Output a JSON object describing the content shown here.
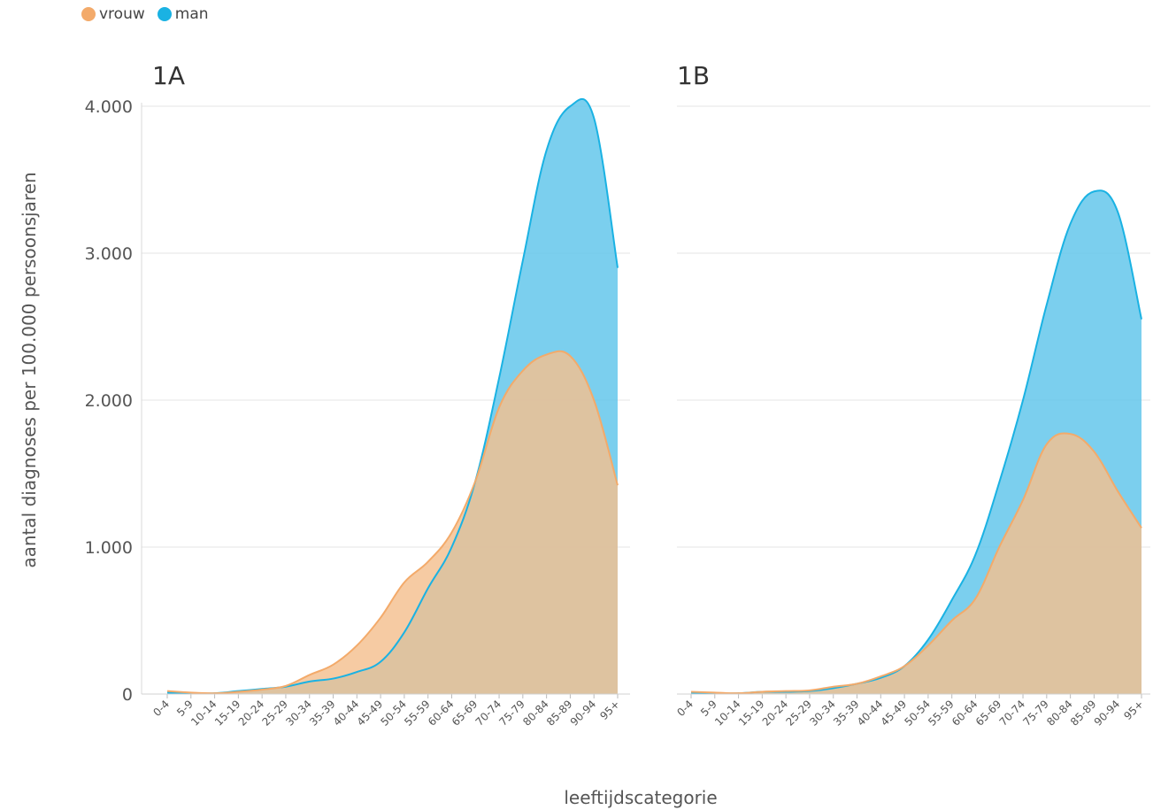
{
  "legend": [
    {
      "label": "vrouw",
      "color": "#f3aa6a"
    },
    {
      "label": "man",
      "color": "#1ab2e3"
    }
  ],
  "chart_data": {
    "type": "area",
    "xlabel": "leeftijdscategorie",
    "ylabel": "aantal diagnoses per 100.000 persoonsjaren",
    "ylim": [
      0,
      4000
    ],
    "yticks": [
      0,
      1000,
      2000,
      3000,
      4000
    ],
    "ytick_labels": [
      "0",
      "1.000",
      "2.000",
      "3.000",
      "4.000"
    ],
    "categories": [
      "0-4",
      "5-9",
      "10-14",
      "15-19",
      "20-24",
      "25-29",
      "30-34",
      "35-39",
      "40-44",
      "45-49",
      "50-54",
      "55-59",
      "60-64",
      "65-69",
      "70-74",
      "75-79",
      "80-84",
      "85-89",
      "90-94",
      "95+"
    ],
    "grid": true,
    "legend_position": "top-left",
    "panels": [
      {
        "title": "1A",
        "series": [
          {
            "name": "man",
            "color": "#1ab2e3",
            "fill": "#5ec5ea",
            "values": [
              10,
              5,
              5,
              20,
              35,
              50,
              85,
              105,
              150,
              220,
              420,
              720,
              1000,
              1450,
              2150,
              2950,
              3700,
              4000,
              3920,
              2900
            ]
          },
          {
            "name": "vrouw",
            "color": "#f3aa6a",
            "fill": "#f4bf8f",
            "values": [
              20,
              10,
              5,
              15,
              30,
              55,
              130,
              200,
              330,
              520,
              760,
              900,
              1100,
              1450,
              1950,
              2200,
              2310,
              2300,
              2000,
              1420
            ]
          }
        ]
      },
      {
        "title": "1B",
        "series": [
          {
            "name": "man",
            "color": "#1ab2e3",
            "fill": "#5ec5ea",
            "values": [
              10,
              5,
              5,
              15,
              15,
              20,
              40,
              70,
              110,
              190,
              370,
              640,
              950,
              1440,
              2000,
              2650,
              3200,
              3420,
              3280,
              2550
            ]
          },
          {
            "name": "vrouw",
            "color": "#f3aa6a",
            "fill": "#f4bf8f",
            "values": [
              15,
              10,
              5,
              15,
              20,
              25,
              50,
              70,
              120,
              190,
              330,
              500,
              650,
              1000,
              1320,
              1700,
              1770,
              1650,
              1380,
              1130
            ]
          }
        ]
      }
    ]
  }
}
